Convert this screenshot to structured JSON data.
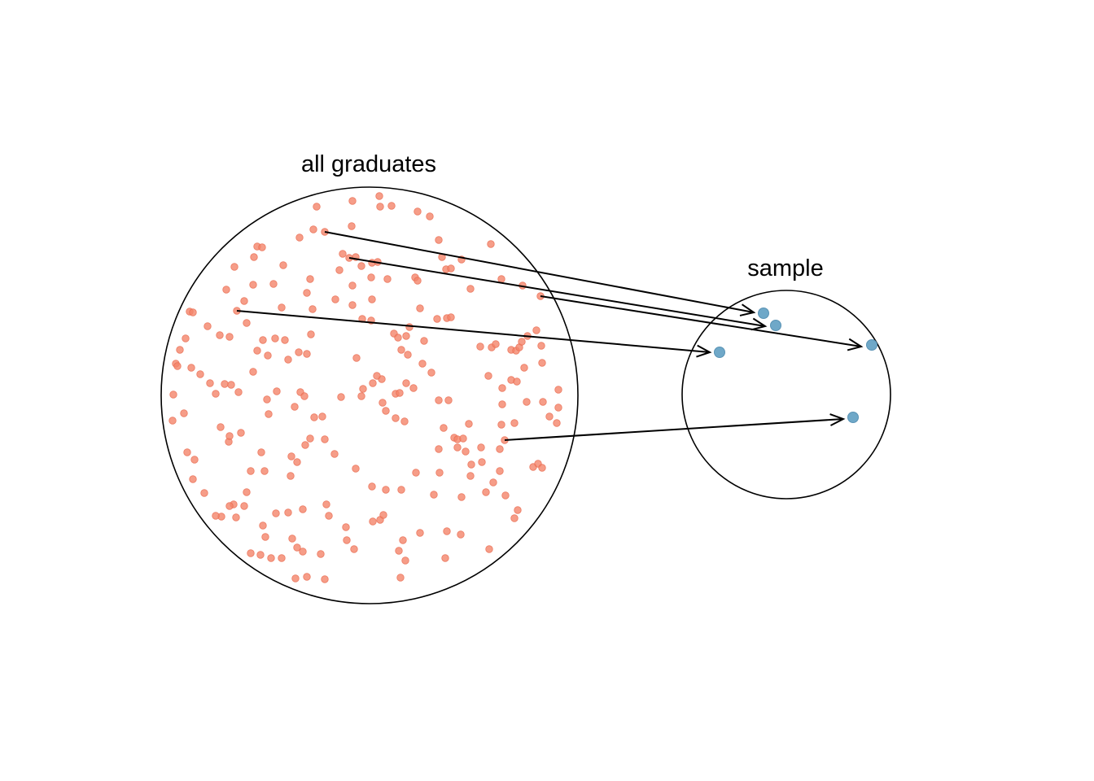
{
  "population": {
    "label": "all graduates",
    "dot_color": "#f4846a",
    "selected": [
      "p1",
      "p2",
      "p3",
      "p4",
      "p5"
    ]
  },
  "sample": {
    "label": "sample",
    "dot_color": "#6fa8c8",
    "members": [
      "s1",
      "s2",
      "s3",
      "s4",
      "s5"
    ]
  },
  "links": [
    {
      "from": "p1",
      "to": "s1"
    },
    {
      "from": "p2",
      "to": "s2"
    },
    {
      "from": "p3",
      "to": "s3"
    },
    {
      "from": "p4",
      "to": "s4"
    },
    {
      "from": "p5",
      "to": "s5"
    }
  ]
}
